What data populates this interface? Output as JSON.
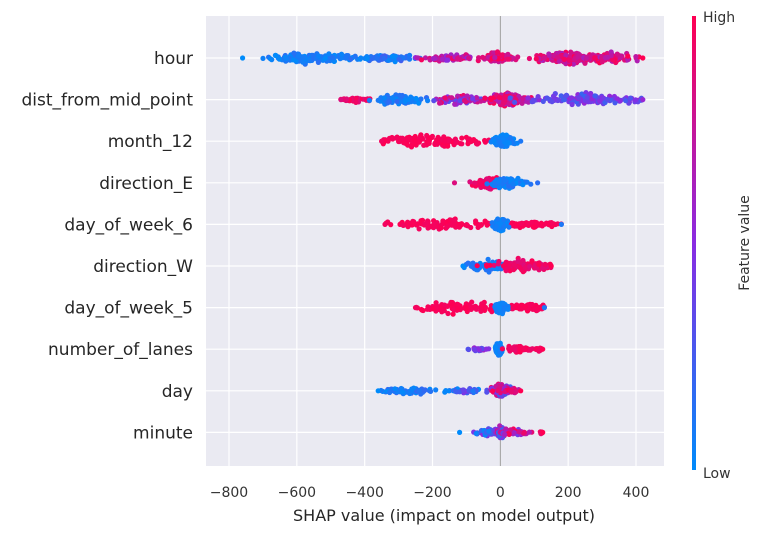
{
  "chart_data": {
    "type": "scatter",
    "subtype": "shap-beeswarm",
    "xlabel": "SHAP value (impact on model output)",
    "xlim": [
      -820,
      480
    ],
    "x_ticks": [
      -800,
      -600,
      -400,
      -200,
      0,
      200,
      400
    ],
    "x_tick_labels": [
      "−800",
      "−600",
      "−400",
      "−200",
      "0",
      "200",
      "400"
    ],
    "grid": true,
    "features": [
      {
        "name": "hour",
        "min": -760,
        "max": 420,
        "clusters": [
          {
            "center": -570,
            "width": 240,
            "count": 120,
            "color_low": 0.0,
            "color_high": 0.15
          },
          {
            "center": -330,
            "width": 200,
            "count": 70,
            "color_low": 0.0,
            "color_high": 0.25
          },
          {
            "center": -140,
            "width": 180,
            "count": 70,
            "color_low": 0.5,
            "color_high": 1.0
          },
          {
            "center": 0,
            "width": 90,
            "count": 90,
            "color_low": 0.7,
            "color_high": 1.0
          },
          {
            "center": 200,
            "width": 170,
            "count": 200,
            "color_low": 0.6,
            "color_high": 1.0
          },
          {
            "center": 320,
            "width": 150,
            "count": 100,
            "color_low": 0.6,
            "color_high": 1.0
          }
        ]
      },
      {
        "name": "dist_from_mid_point",
        "min": -470,
        "max": 420,
        "clusters": [
          {
            "center": -420,
            "width": 100,
            "count": 35,
            "color_low": 0.85,
            "color_high": 1.0
          },
          {
            "center": -300,
            "width": 130,
            "count": 90,
            "color_low": 0.0,
            "color_high": 0.2
          },
          {
            "center": -120,
            "width": 160,
            "count": 70,
            "color_low": 0.3,
            "color_high": 1.0
          },
          {
            "center": 20,
            "width": 110,
            "count": 220,
            "color_low": 0.6,
            "color_high": 1.0
          },
          {
            "center": 250,
            "width": 330,
            "count": 140,
            "color_low": 0.2,
            "color_high": 0.55
          }
        ]
      },
      {
        "name": "month_12",
        "min": -350,
        "max": 60,
        "clusters": [
          {
            "center": -210,
            "width": 280,
            "count": 150,
            "color_low": 0.95,
            "color_high": 1.0
          },
          {
            "center": 10,
            "width": 60,
            "count": 130,
            "color_low": 0.0,
            "color_high": 0.1
          }
        ]
      },
      {
        "name": "direction_E",
        "min": -135,
        "max": 110,
        "clusters": [
          {
            "center": -30,
            "width": 90,
            "count": 140,
            "color_low": 0.85,
            "color_high": 1.0
          },
          {
            "center": 20,
            "width": 110,
            "count": 110,
            "color_low": 0.0,
            "color_high": 0.15
          }
        ]
      },
      {
        "name": "day_of_week_6",
        "min": -340,
        "max": 180,
        "clusters": [
          {
            "center": -160,
            "width": 340,
            "count": 110,
            "color_low": 0.95,
            "color_high": 1.0
          },
          {
            "center": 100,
            "width": 150,
            "count": 60,
            "color_low": 0.95,
            "color_high": 1.0
          },
          {
            "center": 0,
            "width": 40,
            "count": 120,
            "color_low": 0.0,
            "color_high": 0.1
          }
        ]
      },
      {
        "name": "direction_W",
        "min": -110,
        "max": 150,
        "clusters": [
          {
            "center": -30,
            "width": 120,
            "count": 100,
            "color_low": 0.0,
            "color_high": 0.15
          },
          {
            "center": 60,
            "width": 170,
            "count": 120,
            "color_low": 0.85,
            "color_high": 1.0
          }
        ]
      },
      {
        "name": "day_of_week_5",
        "min": -250,
        "max": 130,
        "clusters": [
          {
            "center": -120,
            "width": 250,
            "count": 110,
            "color_low": 0.95,
            "color_high": 1.0
          },
          {
            "center": 80,
            "width": 110,
            "count": 70,
            "color_low": 0.95,
            "color_high": 1.0
          },
          {
            "center": 0,
            "width": 30,
            "count": 110,
            "color_low": 0.0,
            "color_high": 0.1
          }
        ]
      },
      {
        "name": "number_of_lanes",
        "min": -95,
        "max": 125,
        "clusters": [
          {
            "center": -60,
            "width": 60,
            "count": 20,
            "color_low": 0.3,
            "color_high": 0.6
          },
          {
            "center": -5,
            "width": 20,
            "count": 110,
            "color_low": 0.0,
            "color_high": 0.1
          },
          {
            "center": 50,
            "width": 80,
            "count": 60,
            "color_low": 0.9,
            "color_high": 1.0
          },
          {
            "center": 115,
            "width": 20,
            "count": 15,
            "color_low": 0.9,
            "color_high": 1.0
          }
        ]
      },
      {
        "name": "day",
        "min": -360,
        "max": 60,
        "clusters": [
          {
            "center": -270,
            "width": 180,
            "count": 60,
            "color_low": 0.0,
            "color_high": 0.2
          },
          {
            "center": -100,
            "width": 120,
            "count": 40,
            "color_low": 0.0,
            "color_high": 0.5
          },
          {
            "center": 0,
            "width": 60,
            "count": 140,
            "color_low": 0.2,
            "color_high": 1.0
          },
          {
            "center": 40,
            "width": 40,
            "count": 30,
            "color_low": 0.6,
            "color_high": 1.0
          }
        ]
      },
      {
        "name": "minute",
        "min": -120,
        "max": 125,
        "clusters": [
          {
            "center": -30,
            "width": 90,
            "count": 70,
            "color_low": 0.0,
            "color_high": 0.6
          },
          {
            "center": 0,
            "width": 20,
            "count": 120,
            "color_low": 0.0,
            "color_high": 1.0
          },
          {
            "center": 40,
            "width": 80,
            "count": 60,
            "color_low": 0.4,
            "color_high": 1.0
          },
          {
            "center": 120,
            "width": 10,
            "count": 6,
            "color_low": 0.9,
            "color_high": 1.0
          }
        ]
      }
    ],
    "colorbar": {
      "label": "Feature value",
      "high_label": "High",
      "low_label": "Low",
      "color_low": "#008bfb",
      "color_mid": "#8a2be2",
      "color_high": "#ff0052"
    },
    "colors": {
      "plot_background": "#eaeaf2",
      "grid": "#ffffff",
      "zero_line": "#999999"
    }
  }
}
